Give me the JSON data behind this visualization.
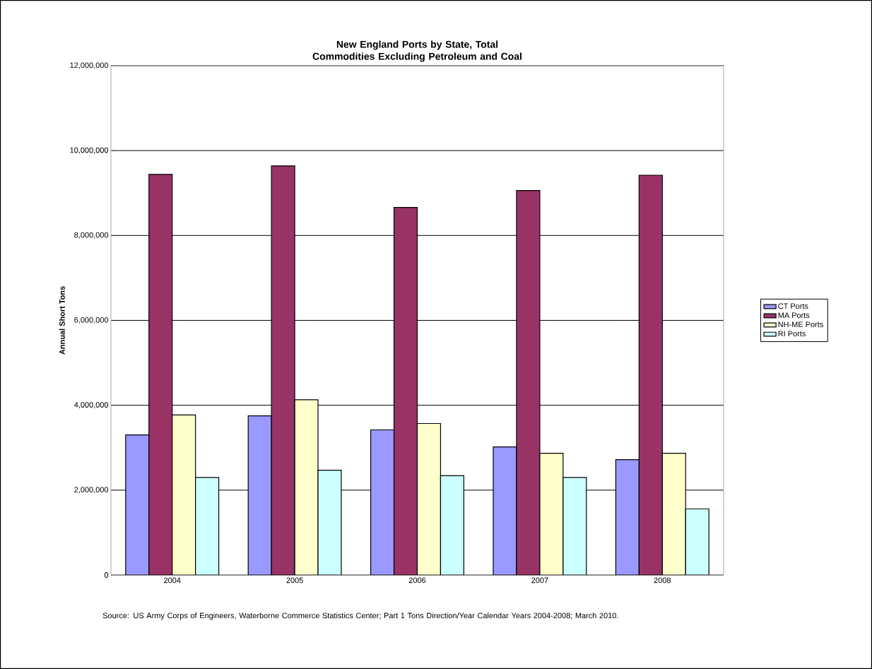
{
  "chart_data": {
    "type": "bar",
    "title": "New England Ports by State, Total Commodities Excluding Petroleum and Coal",
    "ylabel": "Annual Short Tons",
    "categories": [
      "2004",
      "2005",
      "2006",
      "2007",
      "2008"
    ],
    "series": [
      {
        "name": "CT Ports",
        "color": "#9999ff",
        "values": [
          3300000,
          3750000,
          3420000,
          3020000,
          2720000
        ]
      },
      {
        "name": "MA Ports",
        "color": "#993366",
        "values": [
          9440000,
          9640000,
          8660000,
          9060000,
          9420000
        ]
      },
      {
        "name": "NH-ME Ports",
        "color": "#ffffcc",
        "values": [
          3770000,
          4130000,
          3570000,
          2870000,
          2870000
        ]
      },
      {
        "name": "RI Ports",
        "color": "#ccffff",
        "values": [
          2300000,
          2470000,
          2340000,
          2300000,
          1560000
        ]
      }
    ],
    "ylim": [
      0,
      12000000
    ],
    "yticks": [
      0,
      {
        "value": 2000000,
        "label": "2,000,000"
      },
      {
        "value": 4000000,
        "label": "4,000,000"
      },
      {
        "value": 6000000,
        "label": "6,000,000"
      },
      {
        "value": 8000000,
        "label": "8,000,000"
      },
      {
        "value": 10000000,
        "label": "10,000,000"
      },
      {
        "value": 12000000,
        "label": "12,000,000"
      }
    ],
    "grid": "y",
    "legend": "right",
    "annotations": [
      "Source:  US Army Corps of Engineers, Waterborne Commerce Statistics Center; Part 1 Tons Direction/Year Calendar Years 2004-2008; March 2010."
    ]
  }
}
